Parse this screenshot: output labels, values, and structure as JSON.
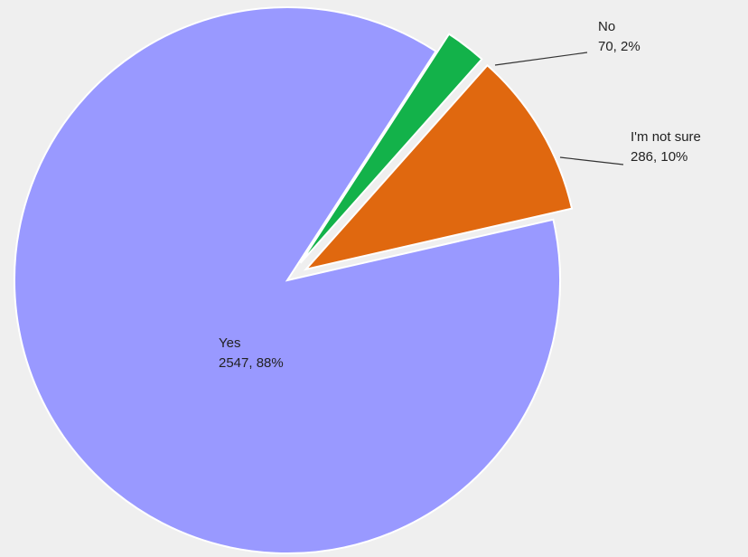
{
  "chart_data": {
    "type": "pie",
    "legend": "none",
    "slices": [
      {
        "label": "No",
        "value": 70,
        "percent_label": "70, 2%",
        "color": "#13b24a",
        "exploded": true
      },
      {
        "label": "I'm not sure",
        "value": 286,
        "percent_label": "286, 10%",
        "color": "#e0680f",
        "exploded": true
      },
      {
        "label": "Yes",
        "value": 2547,
        "percent_label": "2547, 88%",
        "color": "#9999ff",
        "exploded": false
      }
    ]
  }
}
